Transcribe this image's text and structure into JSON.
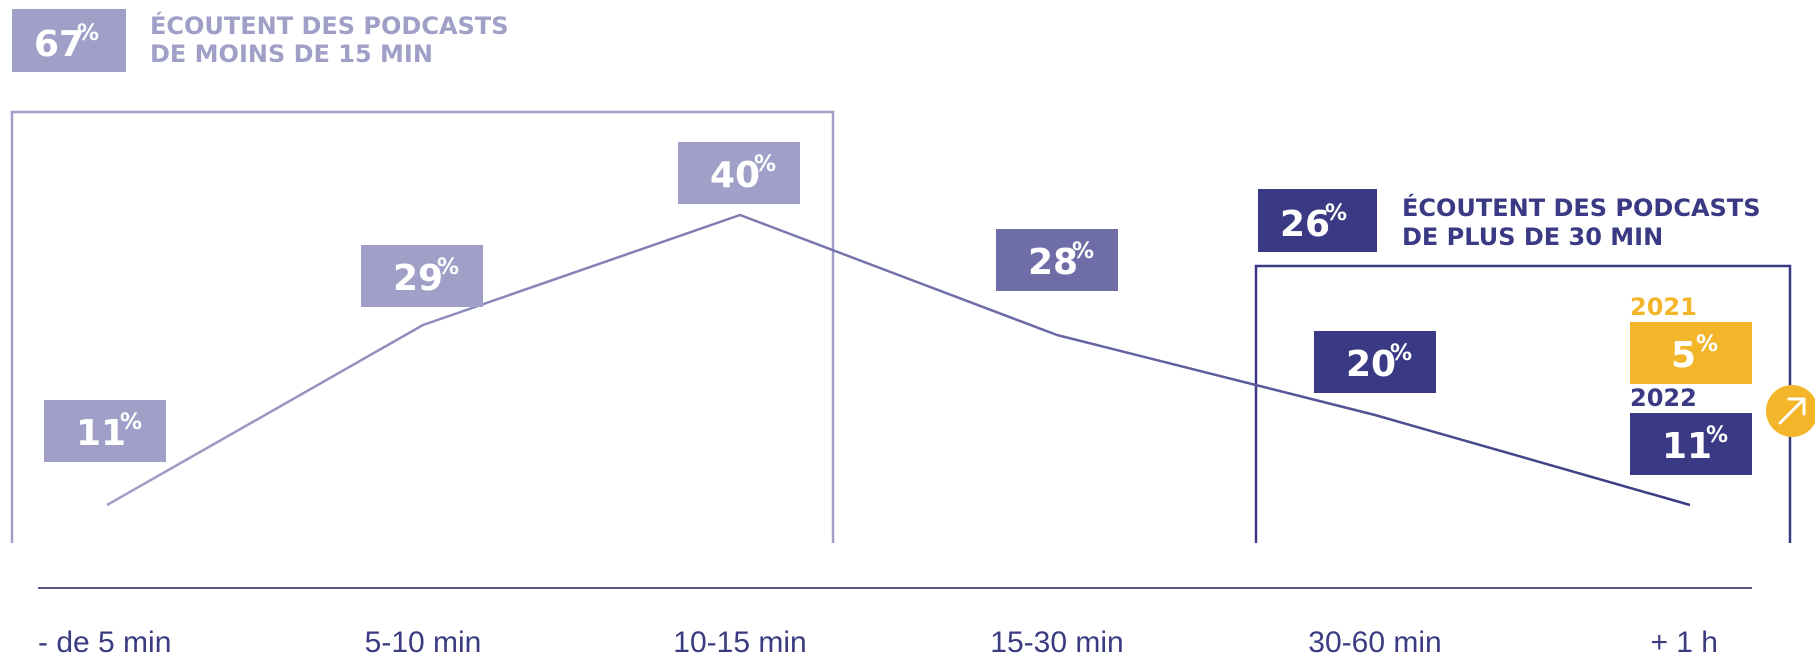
{
  "summary_short": {
    "number": "67",
    "unit": "%",
    "line1": "ÉCOUTENT DES PODCASTS",
    "line2": "DE MOINS DE 15 MIN"
  },
  "summary_long": {
    "number": "26",
    "unit": "%",
    "line1": "ÉCOUTENT DES PODCASTS",
    "line2": "DE PLUS DE 30 MIN"
  },
  "chart_data": {
    "type": "line",
    "categories": [
      "- de 5 min",
      "5-10 min",
      "10-15 min",
      "15-30 min",
      "30-60 min",
      "+ 1 h"
    ],
    "values": [
      11,
      29,
      40,
      28,
      20,
      11
    ],
    "unit": "%",
    "comparison": {
      "category": "+ 1 h",
      "years": [
        {
          "label": "2021",
          "value": 5,
          "color": "#f3b52a"
        },
        {
          "label": "2022",
          "value": 11,
          "color": "#3a3a84"
        }
      ],
      "trend_icon": "arrow-up-right-icon"
    },
    "ylim": [
      0,
      50
    ],
    "grid": false
  },
  "colors": {
    "light": "#a09fc7",
    "mid": "#6e6da8",
    "dark": "#3a3a84",
    "accent": "#f3b52a",
    "axis": "#5a5a8a"
  }
}
